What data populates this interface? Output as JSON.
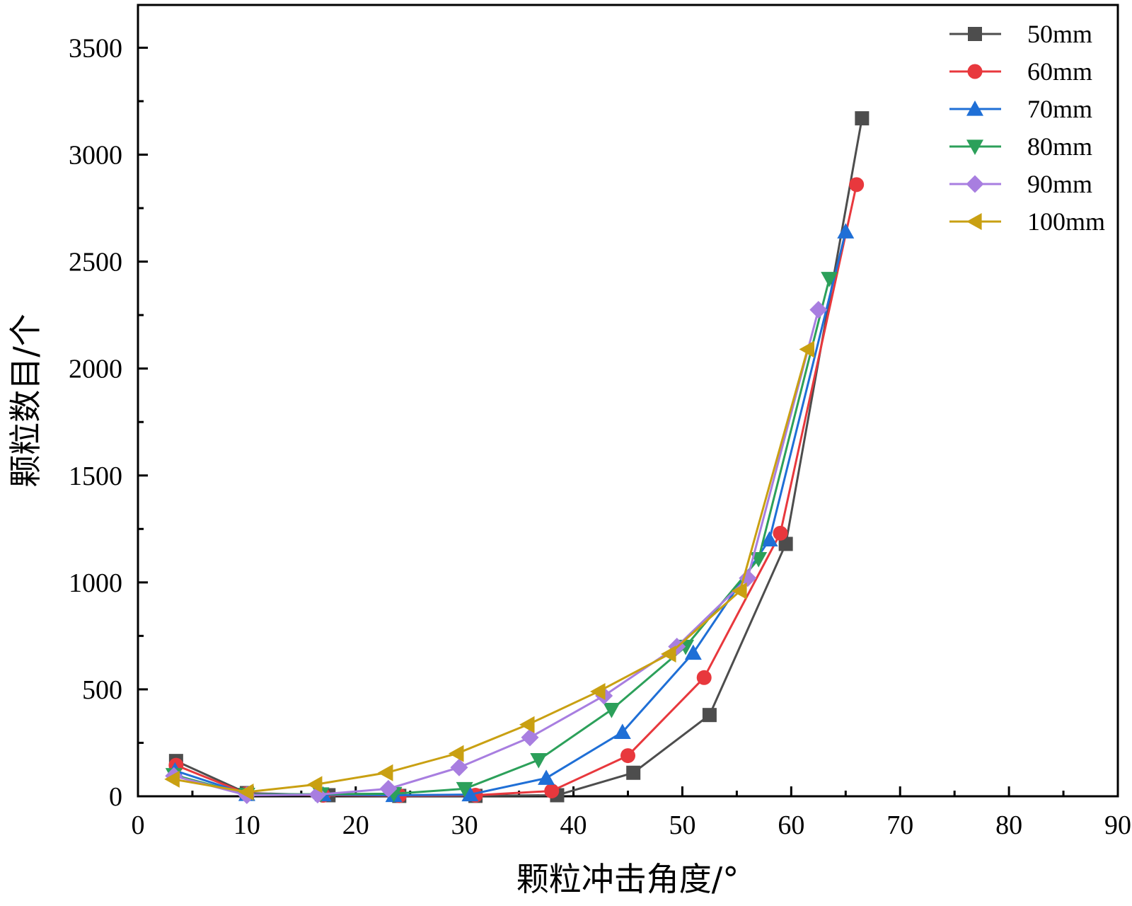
{
  "chart_data": {
    "type": "line",
    "title": "",
    "xlabel": "颗粒冲击角度/°",
    "ylabel": "颗粒数目/个",
    "xlim": [
      0,
      90
    ],
    "ylim": [
      0,
      3700
    ],
    "xticks": [
      0,
      10,
      20,
      30,
      40,
      50,
      60,
      70,
      80,
      90
    ],
    "yticks": [
      0,
      500,
      1000,
      1500,
      2000,
      2500,
      3000,
      3500
    ],
    "legend_position": "top-right",
    "grid": false,
    "series": [
      {
        "name": "50mm",
        "color": "#4d4d4d",
        "marker": "square",
        "x": [
          3.5,
          10,
          17.5,
          24,
          31,
          38.5,
          45.5,
          52.5,
          59.5,
          66.5
        ],
        "y": [
          165,
          15,
          5,
          2,
          2,
          5,
          110,
          380,
          1180,
          3170
        ]
      },
      {
        "name": "60mm",
        "color": "#e8383d",
        "marker": "circle",
        "x": [
          3.5,
          10,
          17,
          24,
          31,
          38,
          45,
          52,
          59,
          66
        ],
        "y": [
          145,
          12,
          5,
          3,
          5,
          25,
          190,
          555,
          1230,
          2860
        ]
      },
      {
        "name": "70mm",
        "color": "#1f6fd6",
        "marker": "triangle-up",
        "x": [
          3.4,
          10,
          17,
          23.5,
          30.5,
          37.5,
          44.5,
          51,
          58,
          65
        ],
        "y": [
          120,
          10,
          8,
          5,
          8,
          85,
          300,
          670,
          1200,
          2640
        ]
      },
      {
        "name": "80mm",
        "color": "#2ca05a",
        "marker": "triangle-down",
        "x": [
          3.3,
          10,
          16.8,
          23.5,
          30,
          36.8,
          43.5,
          50.3,
          57,
          63.5
        ],
        "y": [
          100,
          8,
          10,
          12,
          35,
          170,
          405,
          700,
          1110,
          2420
        ]
      },
      {
        "name": "90mm",
        "color": "#a87ee0",
        "marker": "diamond",
        "x": [
          3.3,
          10,
          16.5,
          23,
          29.5,
          36,
          42.8,
          49.5,
          56,
          62.5
        ],
        "y": [
          95,
          5,
          8,
          35,
          135,
          275,
          470,
          700,
          1020,
          2275
        ]
      },
      {
        "name": "100mm",
        "color": "#c9a012",
        "marker": "triangle-left",
        "x": [
          3.2,
          10,
          16.3,
          22.8,
          29.3,
          35.8,
          42.3,
          48.8,
          55.3,
          61.5
        ],
        "y": [
          80,
          20,
          55,
          110,
          200,
          335,
          490,
          665,
          960,
          2090
        ]
      }
    ]
  }
}
